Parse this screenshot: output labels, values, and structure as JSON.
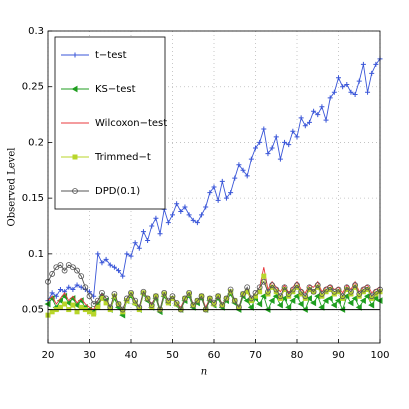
{
  "chart_data": {
    "type": "line",
    "xlabel": "n",
    "ylabel": "Observed Level",
    "x": [
      20,
      21,
      22,
      23,
      24,
      25,
      26,
      27,
      28,
      29,
      30,
      31,
      32,
      33,
      34,
      35,
      36,
      37,
      38,
      39,
      40,
      41,
      42,
      43,
      44,
      45,
      46,
      47,
      48,
      49,
      50,
      51,
      52,
      53,
      54,
      55,
      56,
      57,
      58,
      59,
      60,
      61,
      62,
      63,
      64,
      65,
      66,
      67,
      68,
      69,
      70,
      71,
      72,
      73,
      74,
      75,
      76,
      77,
      78,
      79,
      80,
      81,
      82,
      83,
      84,
      85,
      86,
      87,
      88,
      89,
      90,
      91,
      92,
      93,
      94,
      95,
      96,
      97,
      98,
      99,
      100
    ],
    "xlim": [
      20,
      100
    ],
    "xticks": [
      20,
      30,
      40,
      50,
      60,
      70,
      80,
      90,
      100
    ],
    "ylim": [
      0.02,
      0.3
    ],
    "yticks": [
      0.05,
      0.1,
      0.15,
      0.2,
      0.25,
      0.3
    ],
    "grid": true,
    "legend": "upper left",
    "hline": 0.05,
    "series": [
      {
        "name": "t−test",
        "color": "#3a56d8",
        "marker": "plus",
        "values": [
          0.058,
          0.065,
          0.062,
          0.068,
          0.066,
          0.07,
          0.068,
          0.072,
          0.07,
          0.068,
          0.066,
          0.062,
          0.1,
          0.092,
          0.095,
          0.09,
          0.088,
          0.085,
          0.08,
          0.1,
          0.098,
          0.11,
          0.105,
          0.12,
          0.112,
          0.125,
          0.132,
          0.118,
          0.14,
          0.128,
          0.135,
          0.145,
          0.138,
          0.142,
          0.135,
          0.13,
          0.128,
          0.135,
          0.142,
          0.155,
          0.16,
          0.148,
          0.165,
          0.15,
          0.155,
          0.168,
          0.18,
          0.175,
          0.17,
          0.185,
          0.195,
          0.2,
          0.212,
          0.19,
          0.195,
          0.205,
          0.185,
          0.2,
          0.198,
          0.21,
          0.205,
          0.222,
          0.215,
          0.218,
          0.228,
          0.225,
          0.232,
          0.22,
          0.24,
          0.245,
          0.258,
          0.25,
          0.252,
          0.245,
          0.243,
          0.255,
          0.27,
          0.245,
          0.262,
          0.27,
          0.275
        ]
      },
      {
        "name": "KS−test",
        "color": "#1f9e1f",
        "marker": "triangle",
        "values": [
          0.055,
          0.06,
          0.052,
          0.058,
          0.062,
          0.056,
          0.06,
          0.054,
          0.058,
          0.052,
          0.05,
          0.048,
          0.055,
          0.062,
          0.058,
          0.05,
          0.06,
          0.052,
          0.045,
          0.058,
          0.062,
          0.055,
          0.05,
          0.064,
          0.058,
          0.052,
          0.06,
          0.048,
          0.062,
          0.056,
          0.06,
          0.054,
          0.05,
          0.058,
          0.062,
          0.052,
          0.056,
          0.06,
          0.05,
          0.058,
          0.054,
          0.06,
          0.052,
          0.058,
          0.064,
          0.056,
          0.05,
          0.062,
          0.058,
          0.052,
          0.06,
          0.055,
          0.062,
          0.05,
          0.058,
          0.062,
          0.054,
          0.06,
          0.052,
          0.058,
          0.062,
          0.055,
          0.05,
          0.06,
          0.056,
          0.062,
          0.052,
          0.058,
          0.06,
          0.054,
          0.058,
          0.05,
          0.062,
          0.056,
          0.06,
          0.052,
          0.058,
          0.062,
          0.054,
          0.06,
          0.058
        ]
      },
      {
        "name": "Wilcoxon−test",
        "color": "#e8383d",
        "marker": "none",
        "values": [
          0.058,
          0.062,
          0.055,
          0.06,
          0.065,
          0.058,
          0.062,
          0.056,
          0.06,
          0.055,
          0.052,
          0.05,
          0.058,
          0.064,
          0.06,
          0.052,
          0.062,
          0.055,
          0.05,
          0.06,
          0.065,
          0.058,
          0.052,
          0.066,
          0.06,
          0.055,
          0.062,
          0.05,
          0.064,
          0.058,
          0.062,
          0.056,
          0.052,
          0.06,
          0.064,
          0.055,
          0.058,
          0.062,
          0.052,
          0.06,
          0.056,
          0.062,
          0.055,
          0.06,
          0.066,
          0.058,
          0.052,
          0.064,
          0.068,
          0.06,
          0.065,
          0.07,
          0.088,
          0.068,
          0.075,
          0.07,
          0.066,
          0.072,
          0.065,
          0.07,
          0.075,
          0.068,
          0.065,
          0.072,
          0.07,
          0.075,
          0.066,
          0.07,
          0.072,
          0.068,
          0.07,
          0.065,
          0.072,
          0.068,
          0.075,
          0.066,
          0.07,
          0.072,
          0.065,
          0.068,
          0.07
        ]
      },
      {
        "name": "Trimmed−t",
        "color": "#b8d62a",
        "marker": "square",
        "values": [
          0.045,
          0.048,
          0.05,
          0.052,
          0.055,
          0.05,
          0.054,
          0.048,
          0.052,
          0.05,
          0.048,
          0.046,
          0.052,
          0.06,
          0.056,
          0.05,
          0.062,
          0.055,
          0.048,
          0.058,
          0.064,
          0.056,
          0.05,
          0.065,
          0.06,
          0.052,
          0.062,
          0.05,
          0.064,
          0.056,
          0.06,
          0.055,
          0.05,
          0.06,
          0.064,
          0.054,
          0.058,
          0.062,
          0.05,
          0.06,
          0.055,
          0.062,
          0.054,
          0.06,
          0.066,
          0.058,
          0.052,
          0.064,
          0.066,
          0.058,
          0.062,
          0.066,
          0.08,
          0.064,
          0.07,
          0.066,
          0.06,
          0.068,
          0.062,
          0.066,
          0.07,
          0.064,
          0.06,
          0.068,
          0.066,
          0.07,
          0.062,
          0.066,
          0.068,
          0.064,
          0.066,
          0.06,
          0.068,
          0.064,
          0.07,
          0.062,
          0.066,
          0.068,
          0.06,
          0.064,
          0.066
        ]
      },
      {
        "name": "DPD(0.1)",
        "color": "#555555",
        "marker": "circle",
        "values": [
          0.075,
          0.082,
          0.088,
          0.09,
          0.085,
          0.09,
          0.088,
          0.085,
          0.08,
          0.07,
          0.062,
          0.055,
          0.058,
          0.065,
          0.06,
          0.052,
          0.064,
          0.055,
          0.05,
          0.06,
          0.065,
          0.058,
          0.052,
          0.066,
          0.06,
          0.054,
          0.062,
          0.05,
          0.065,
          0.058,
          0.062,
          0.056,
          0.05,
          0.06,
          0.065,
          0.054,
          0.058,
          0.062,
          0.05,
          0.06,
          0.056,
          0.062,
          0.054,
          0.06,
          0.068,
          0.058,
          0.052,
          0.064,
          0.07,
          0.06,
          0.065,
          0.07,
          0.075,
          0.066,
          0.072,
          0.068,
          0.062,
          0.07,
          0.064,
          0.068,
          0.072,
          0.066,
          0.062,
          0.07,
          0.066,
          0.072,
          0.064,
          0.068,
          0.07,
          0.066,
          0.068,
          0.062,
          0.07,
          0.066,
          0.072,
          0.064,
          0.068,
          0.07,
          0.062,
          0.066,
          0.068
        ]
      }
    ]
  }
}
